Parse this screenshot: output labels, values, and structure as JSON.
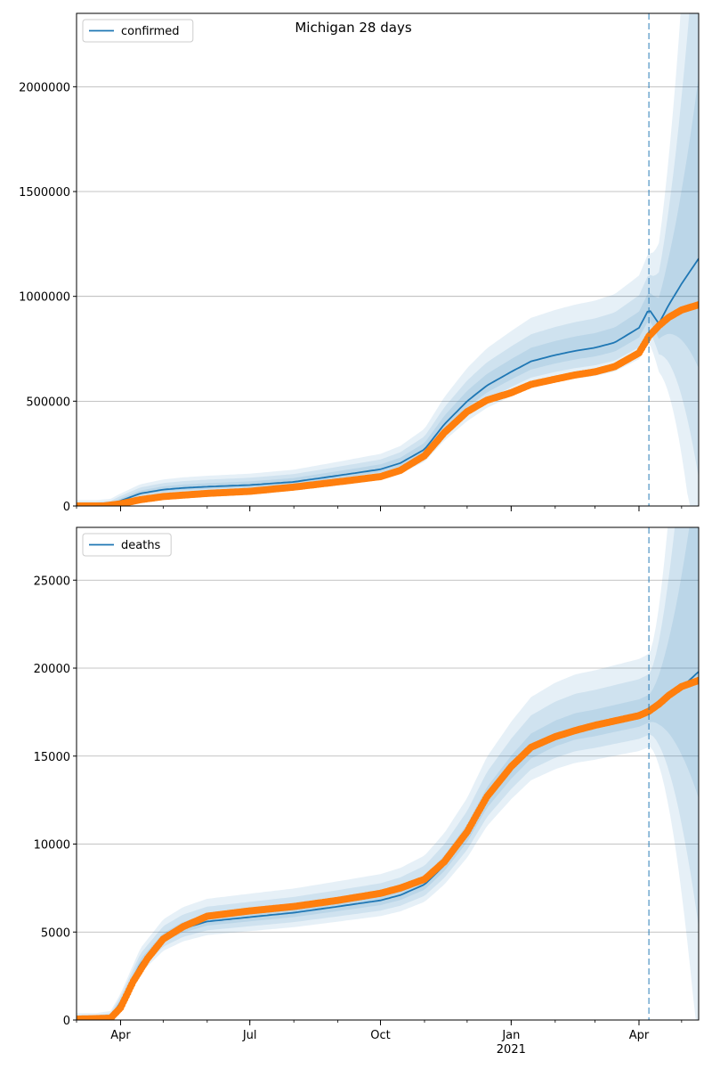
{
  "figure": {
    "title": "Michigan 28 days"
  },
  "chart_data": [
    {
      "type": "line",
      "legend": "top-left",
      "grid": "horizontal",
      "xlim": [
        "2020-03-01",
        "2021-05-13"
      ],
      "ylim": [
        0,
        2350000
      ],
      "yticks": [
        0,
        500000,
        1000000,
        1500000,
        2000000
      ],
      "ytick_labels": [
        "0",
        "500000",
        "1000000",
        "1500000",
        "2000000"
      ],
      "xticks": [
        "2020-04-01",
        "2020-07-01",
        "2020-10-01",
        "2021-01-01",
        "2021-04-01"
      ],
      "xtick_labels": [
        "Apr",
        "Jul",
        "Oct",
        "Jan",
        "Apr"
      ],
      "year_label": "2021",
      "forecast_start": "2021-04-08",
      "fit_series": {
        "name": "confirmed",
        "color": "#1f77b4",
        "x": [
          "2020-03-01",
          "2020-03-15",
          "2020-03-25",
          "2020-04-01",
          "2020-04-15",
          "2020-05-01",
          "2020-05-15",
          "2020-06-01",
          "2020-07-01",
          "2020-08-01",
          "2020-09-01",
          "2020-10-01",
          "2020-10-15",
          "2020-11-01",
          "2020-11-15",
          "2020-12-01",
          "2020-12-15",
          "2021-01-01",
          "2021-01-15",
          "2021-02-01",
          "2021-02-15",
          "2021-03-01",
          "2021-03-15",
          "2021-04-01",
          "2021-04-08",
          "2021-04-15",
          "2021-04-22",
          "2021-05-01",
          "2021-05-13"
        ],
        "y": [
          0,
          0,
          5000,
          25000,
          60000,
          78000,
          86000,
          92000,
          100000,
          115000,
          145000,
          175000,
          205000,
          270000,
          390000,
          500000,
          575000,
          640000,
          690000,
          720000,
          740000,
          755000,
          780000,
          850000,
          940000,
          870000,
          960000,
          1060000,
          1180000
        ]
      },
      "band_widths": [
        0.08,
        0.16,
        0.26
      ],
      "band_color": "#1f77b4",
      "observed": {
        "color": "#ff7f0e",
        "x": [
          "2020-03-01",
          "2020-03-20",
          "2020-04-01",
          "2020-04-15",
          "2020-05-01",
          "2020-06-01",
          "2020-07-01",
          "2020-08-01",
          "2020-09-01",
          "2020-10-01",
          "2020-10-15",
          "2020-11-01",
          "2020-11-15",
          "2020-12-01",
          "2020-12-15",
          "2021-01-01",
          "2021-01-15",
          "2021-02-01",
          "2021-02-15",
          "2021-03-01",
          "2021-03-15",
          "2021-04-01",
          "2021-04-08",
          "2021-04-15",
          "2021-04-22",
          "2021-05-01",
          "2021-05-13"
        ],
        "y": [
          0,
          0,
          10000,
          30000,
          45000,
          60000,
          70000,
          90000,
          115000,
          140000,
          170000,
          240000,
          350000,
          450000,
          505000,
          540000,
          580000,
          605000,
          625000,
          640000,
          665000,
          730000,
          810000,
          860000,
          900000,
          935000,
          960000
        ]
      }
    },
    {
      "type": "line",
      "legend": "top-left",
      "grid": "horizontal",
      "xlim": [
        "2020-03-01",
        "2021-05-13"
      ],
      "ylim": [
        0,
        28000
      ],
      "yticks": [
        0,
        5000,
        10000,
        15000,
        20000,
        25000
      ],
      "ytick_labels": [
        "0",
        "5000",
        "10000",
        "15000",
        "20000",
        "25000"
      ],
      "xticks": [
        "2020-04-01",
        "2020-07-01",
        "2020-10-01",
        "2021-01-01",
        "2021-04-01"
      ],
      "xtick_labels": [
        "Apr",
        "Jul",
        "Oct",
        "Jan",
        "Apr"
      ],
      "year_label": "2021",
      "forecast_start": "2021-04-08",
      "fit_series": {
        "name": "deaths",
        "color": "#1f77b4",
        "x": [
          "2020-03-01",
          "2020-03-15",
          "2020-03-25",
          "2020-04-01",
          "2020-04-15",
          "2020-05-01",
          "2020-05-15",
          "2020-06-01",
          "2020-07-01",
          "2020-08-01",
          "2020-09-01",
          "2020-10-01",
          "2020-10-15",
          "2020-11-01",
          "2020-11-15",
          "2020-12-01",
          "2020-12-15",
          "2021-01-01",
          "2021-01-15",
          "2021-02-01",
          "2021-02-15",
          "2021-03-01",
          "2021-03-15",
          "2021-04-01",
          "2021-04-08",
          "2021-04-15",
          "2021-04-22",
          "2021-05-01",
          "2021-05-13"
        ],
        "y": [
          50,
          50,
          150,
          1000,
          3200,
          4600,
          5200,
          5600,
          5850,
          6100,
          6450,
          6800,
          7100,
          7700,
          8800,
          10500,
          12500,
          14200,
          15400,
          16100,
          16500,
          16700,
          16950,
          17250,
          17500,
          17850,
          18300,
          18900,
          19800
        ]
      },
      "band_widths": [
        0.05,
        0.11,
        0.17
      ],
      "band_color": "#1f77b4",
      "observed": {
        "color": "#ff7f0e",
        "x": [
          "2020-03-01",
          "2020-03-25",
          "2020-04-01",
          "2020-04-10",
          "2020-04-20",
          "2020-05-01",
          "2020-05-15",
          "2020-06-01",
          "2020-07-01",
          "2020-08-01",
          "2020-09-01",
          "2020-10-01",
          "2020-10-15",
          "2020-11-01",
          "2020-11-15",
          "2020-12-01",
          "2020-12-15",
          "2021-01-01",
          "2021-01-15",
          "2021-02-01",
          "2021-02-15",
          "2021-03-01",
          "2021-03-15",
          "2021-04-01",
          "2021-04-08",
          "2021-04-15",
          "2021-04-22",
          "2021-05-01",
          "2021-05-13"
        ],
        "y": [
          50,
          100,
          700,
          2200,
          3500,
          4600,
          5300,
          5900,
          6200,
          6450,
          6800,
          7200,
          7500,
          8000,
          9000,
          10700,
          12700,
          14400,
          15500,
          16100,
          16450,
          16750,
          17000,
          17300,
          17550,
          17950,
          18450,
          18950,
          19300
        ]
      }
    }
  ]
}
